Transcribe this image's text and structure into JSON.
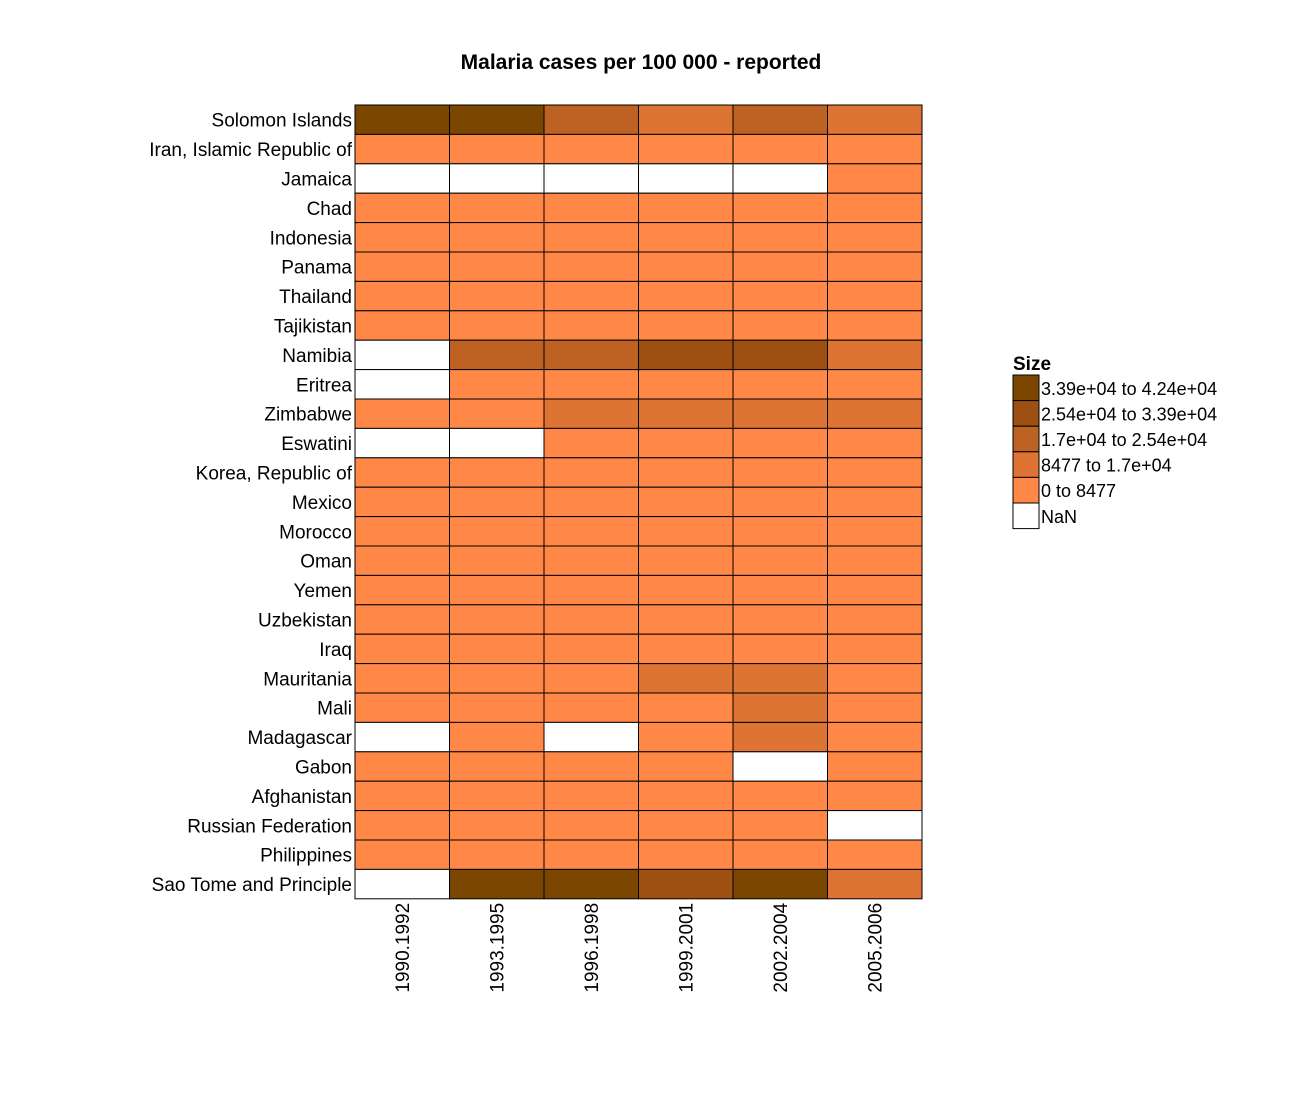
{
  "chart_data": {
    "type": "heatmap",
    "title": "Malaria cases per 100 000 - reported",
    "columns": [
      "1990.1992",
      "1993.1995",
      "1996.1998",
      "1999.2001",
      "2002.2004",
      "2005.2006"
    ],
    "rows": [
      "Solomon Islands",
      "Iran, Islamic Republic of",
      "Jamaica",
      "Chad",
      "Indonesia",
      "Panama",
      "Thailand",
      "Tajikistan",
      "Namibia",
      "Eritrea",
      "Zimbabwe",
      "Eswatini",
      "Korea, Republic of",
      "Mexico",
      "Morocco",
      "Oman",
      "Yemen",
      "Uzbekistan",
      "Iraq",
      "Mauritania",
      "Mali",
      "Madagascar",
      "Gabon",
      "Afghanistan",
      "Russian Federation",
      "Philippines",
      "Sao Tome and Principle"
    ],
    "bin_matrix": [
      [
        5,
        5,
        3,
        2,
        3,
        2
      ],
      [
        1,
        1,
        1,
        1,
        1,
        1
      ],
      [
        0,
        0,
        0,
        0,
        0,
        1
      ],
      [
        1,
        1,
        1,
        1,
        1,
        1
      ],
      [
        1,
        1,
        1,
        1,
        1,
        1
      ],
      [
        1,
        1,
        1,
        1,
        1,
        1
      ],
      [
        1,
        1,
        1,
        1,
        1,
        1
      ],
      [
        1,
        1,
        1,
        1,
        1,
        1
      ],
      [
        0,
        3,
        3,
        4,
        4,
        2
      ],
      [
        0,
        1,
        1,
        1,
        1,
        1
      ],
      [
        1,
        1,
        2,
        2,
        2,
        2
      ],
      [
        0,
        0,
        1,
        1,
        1,
        1
      ],
      [
        1,
        1,
        1,
        1,
        1,
        1
      ],
      [
        1,
        1,
        1,
        1,
        1,
        1
      ],
      [
        1,
        1,
        1,
        1,
        1,
        1
      ],
      [
        1,
        1,
        1,
        1,
        1,
        1
      ],
      [
        1,
        1,
        1,
        1,
        1,
        1
      ],
      [
        1,
        1,
        1,
        1,
        1,
        1
      ],
      [
        1,
        1,
        1,
        1,
        1,
        1
      ],
      [
        1,
        1,
        1,
        2,
        2,
        1
      ],
      [
        1,
        1,
        1,
        1,
        2,
        1
      ],
      [
        0,
        1,
        0,
        1,
        2,
        1
      ],
      [
        1,
        1,
        1,
        1,
        0,
        1
      ],
      [
        1,
        1,
        1,
        1,
        1,
        1
      ],
      [
        1,
        1,
        1,
        1,
        1,
        0
      ],
      [
        1,
        1,
        1,
        1,
        1,
        1
      ],
      [
        0,
        5,
        5,
        4,
        5,
        2
      ]
    ],
    "bins": [
      {
        "label": "NaN",
        "color": "#FFFFFF"
      },
      {
        "label": "0 to 8477",
        "color": "#FF8847"
      },
      {
        "label": "8477 to 1.7e+04",
        "color": "#DE7433"
      },
      {
        "label": "1.7e+04 to 2.54e+04",
        "color": "#BE6224"
      },
      {
        "label": "2.54e+04 to 3.39e+04",
        "color": "#9E4F12"
      },
      {
        "label": "3.39e+04 to 4.24e+04",
        "color": "#7B4700"
      }
    ],
    "legend": {
      "title": "Size",
      "position": "right"
    }
  }
}
